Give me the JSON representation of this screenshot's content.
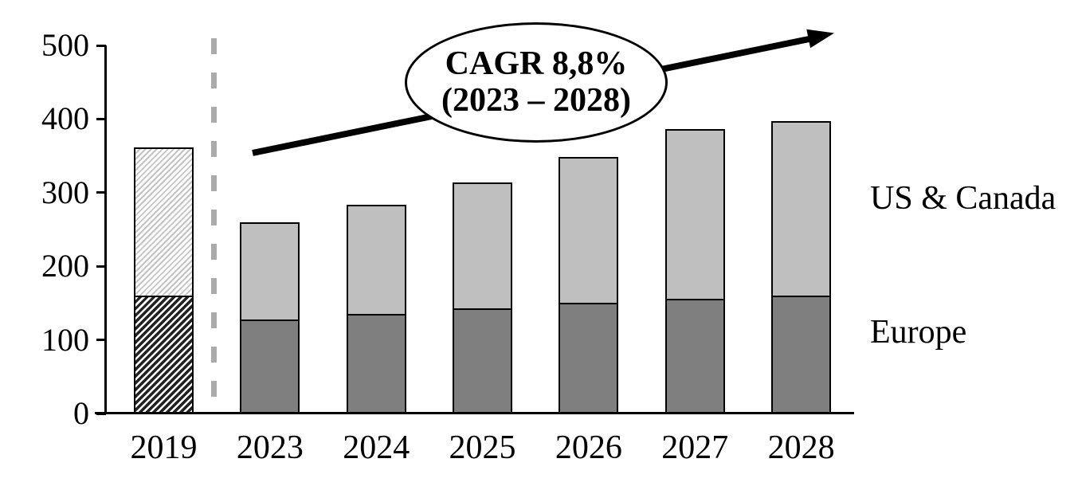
{
  "chart_data": {
    "type": "bar",
    "subtype": "stacked-column",
    "title": "",
    "xlabel": "",
    "ylabel": "",
    "categories": [
      "2019",
      "2023",
      "2024",
      "2025",
      "2026",
      "2027",
      "2028"
    ],
    "series": [
      {
        "name": "Europe",
        "position": "bottom",
        "color": "#7F7F7F",
        "values": [
          160,
          128,
          135,
          143,
          150,
          156,
          160
        ]
      },
      {
        "name": "US & Canada",
        "position": "top",
        "color": "#BFBFBF",
        "values": [
          202,
          132,
          149,
          171,
          198,
          230,
          237
        ]
      }
    ],
    "totals": [
      362,
      260,
      284,
      314,
      348,
      386,
      397
    ],
    "yticks": [
      0,
      100,
      200,
      300,
      400,
      500
    ],
    "ylim": [
      0,
      500
    ],
    "grid": false,
    "legend_position": "right-outside",
    "hatched_category": "2019",
    "separator": {
      "after_category": "2019",
      "style": "dashed-vertical",
      "color": "#ABABAB"
    },
    "annotation": {
      "line1": "CAGR 8,8%",
      "line2": "(2023 – 2028)",
      "shape": "ellipse",
      "arrow": "up-right-trend"
    },
    "colors": {
      "europe_fill": "#7F7F7F",
      "us_canada_fill": "#BFBFBF",
      "bar_border": "#000000",
      "dashed_line": "#ABABAB",
      "arrow": "#000000",
      "text": "#000000"
    }
  }
}
